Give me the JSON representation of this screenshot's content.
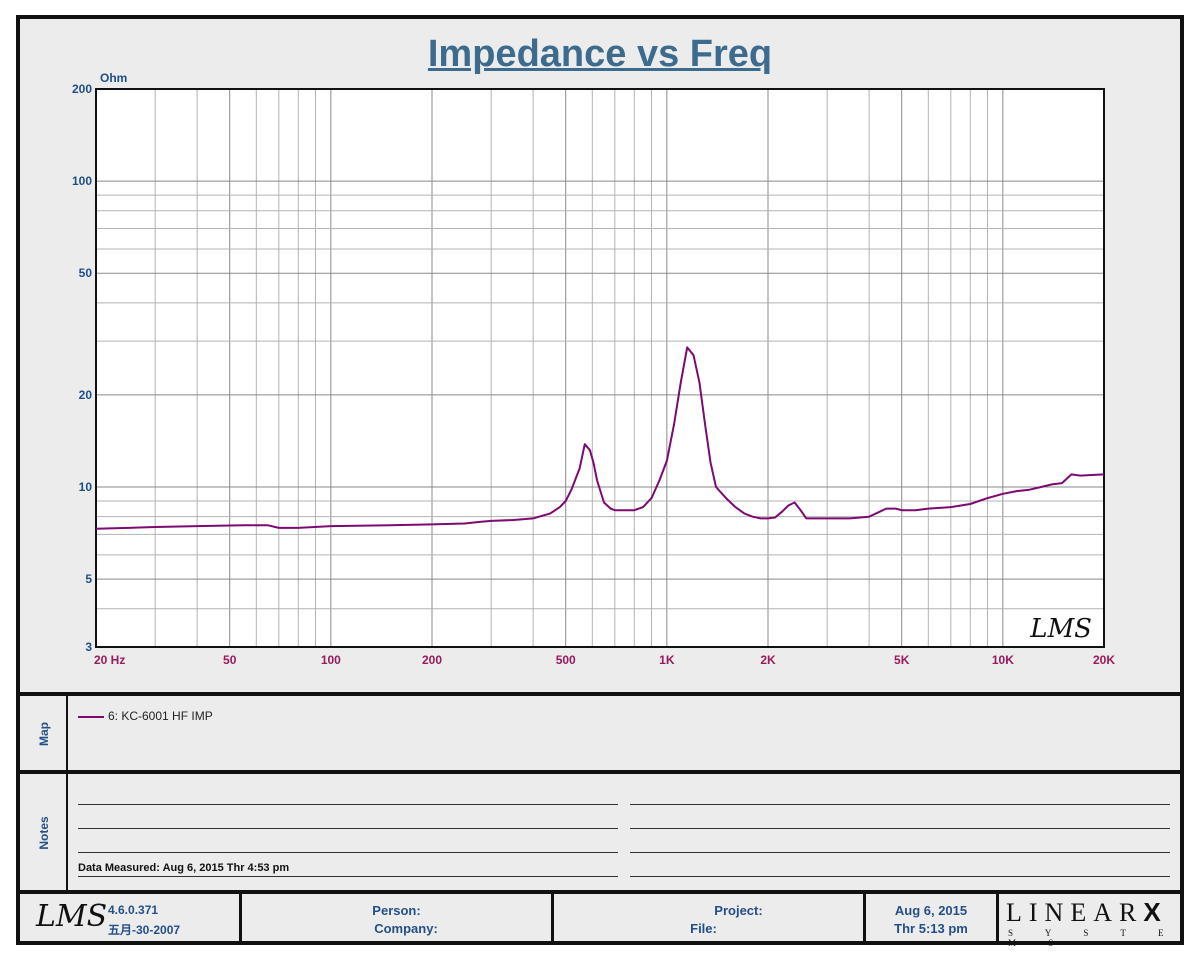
{
  "chart_data": {
    "type": "line",
    "title": "Impedance vs Freq",
    "ylabel": "Ohm",
    "x_scale": "log",
    "y_scale": "log",
    "xlim": [
      20,
      20000
    ],
    "ylim": [
      3,
      200
    ],
    "x_ticks": [
      {
        "v": 20,
        "label": "20  Hz"
      },
      {
        "v": 50,
        "label": "50"
      },
      {
        "v": 100,
        "label": "100"
      },
      {
        "v": 200,
        "label": "200"
      },
      {
        "v": 500,
        "label": "500"
      },
      {
        "v": 1000,
        "label": "1K"
      },
      {
        "v": 2000,
        "label": "2K"
      },
      {
        "v": 5000,
        "label": "5K"
      },
      {
        "v": 10000,
        "label": "10K"
      },
      {
        "v": 20000,
        "label": "20K"
      }
    ],
    "y_ticks": [
      {
        "v": 3,
        "label": "3"
      },
      {
        "v": 5,
        "label": "5"
      },
      {
        "v": 10,
        "label": "10"
      },
      {
        "v": 20,
        "label": "20"
      },
      {
        "v": 50,
        "label": "50"
      },
      {
        "v": 100,
        "label": "100"
      },
      {
        "v": 200,
        "label": "200"
      }
    ],
    "grid": true,
    "watermark": "LMS",
    "series": [
      {
        "name": "6: KC-6001 HF IMP",
        "color": "#7b0a73",
        "x": [
          20,
          25,
          30,
          40,
          55,
          65,
          70,
          80,
          100,
          150,
          200,
          250,
          280,
          300,
          350,
          400,
          450,
          480,
          500,
          520,
          550,
          570,
          590,
          605,
          620,
          650,
          680,
          700,
          750,
          800,
          850,
          900,
          950,
          1000,
          1050,
          1100,
          1150,
          1200,
          1250,
          1300,
          1350,
          1400,
          1500,
          1600,
          1700,
          1800,
          1900,
          2000,
          2100,
          2200,
          2300,
          2400,
          2500,
          2600,
          2800,
          3000,
          3500,
          4000,
          4500,
          4800,
          5000,
          5500,
          6000,
          7000,
          8000,
          9000,
          10000,
          11000,
          12000,
          13000,
          14000,
          15000,
          16000,
          17000,
          20000
        ],
        "y": [
          7.3,
          7.35,
          7.4,
          7.45,
          7.5,
          7.5,
          7.35,
          7.35,
          7.45,
          7.5,
          7.55,
          7.6,
          7.7,
          7.75,
          7.8,
          7.9,
          8.2,
          8.6,
          9.0,
          9.8,
          11.5,
          13.8,
          13.2,
          12.0,
          10.5,
          8.9,
          8.5,
          8.4,
          8.4,
          8.4,
          8.6,
          9.2,
          10.5,
          12.2,
          16.0,
          22.0,
          28.6,
          27.0,
          22.0,
          16.0,
          12.0,
          10.0,
          9.2,
          8.6,
          8.2,
          8.0,
          7.9,
          7.9,
          7.95,
          8.3,
          8.7,
          8.9,
          8.4,
          7.9,
          7.9,
          7.9,
          7.9,
          8.0,
          8.5,
          8.5,
          8.4,
          8.4,
          8.5,
          8.6,
          8.8,
          9.2,
          9.5,
          9.7,
          9.8,
          10.0,
          10.2,
          10.3,
          11.0,
          10.9,
          11.0
        ]
      }
    ]
  },
  "map": {
    "label": "Map",
    "legend_entry": "6: KC-6001 HF IMP"
  },
  "notes": {
    "label": "Notes",
    "data_measured": "Data Measured: Aug  6, 2015  Thr  4:53 pm"
  },
  "footer": {
    "logo_text": "LMS",
    "version": "4.6.0.371",
    "build_date": "五月-30-2007",
    "person_label": "Person:",
    "company_label": "Company:",
    "project_label": "Project:",
    "file_label": "File:",
    "date": "Aug  6, 2015",
    "time": "Thr  5:13 pm",
    "brand": "LINEAR",
    "brand_x": "X",
    "brand_sub": "S Y S T E M S"
  }
}
